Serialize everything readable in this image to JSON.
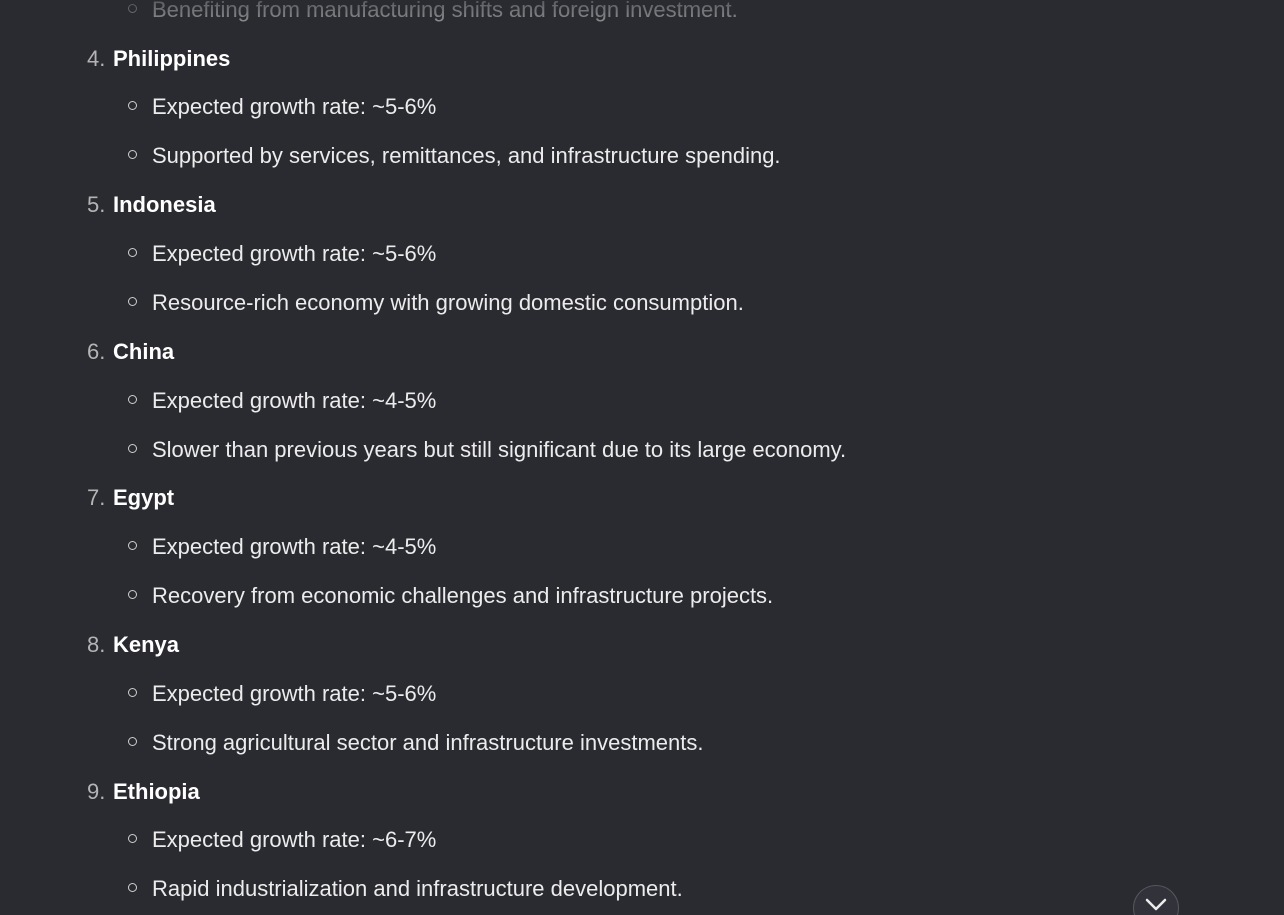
{
  "partial_bullet": "Benefiting from manufacturing shifts and foreign investment.",
  "items": [
    {
      "num": "4.",
      "country": "Philippines",
      "bullets": [
        "Expected growth rate: ~5-6%",
        "Supported by services, remittances, and infrastructure spending."
      ]
    },
    {
      "num": "5.",
      "country": "Indonesia",
      "bullets": [
        "Expected growth rate: ~5-6%",
        "Resource-rich economy with growing domestic consumption."
      ]
    },
    {
      "num": "6.",
      "country": "China",
      "bullets": [
        "Expected growth rate: ~4-5%",
        "Slower than previous years but still significant due to its large economy."
      ]
    },
    {
      "num": "7.",
      "country": "Egypt",
      "bullets": [
        "Expected growth rate: ~4-5%",
        "Recovery from economic challenges and infrastructure projects."
      ]
    },
    {
      "num": "8.",
      "country": "Kenya",
      "bullets": [
        "Expected growth rate: ~5-6%",
        "Strong agricultural sector and infrastructure investments."
      ]
    },
    {
      "num": "9.",
      "country": "Ethiopia",
      "bullets": [
        "Expected growth rate: ~6-7%",
        "Rapid industrialization and infrastructure development."
      ]
    }
  ],
  "icons": {
    "scroll_down": "chevron-down-icon"
  },
  "colors": {
    "background": "#2a2b30",
    "text": "#ececec",
    "number": "#b4b4b4"
  }
}
